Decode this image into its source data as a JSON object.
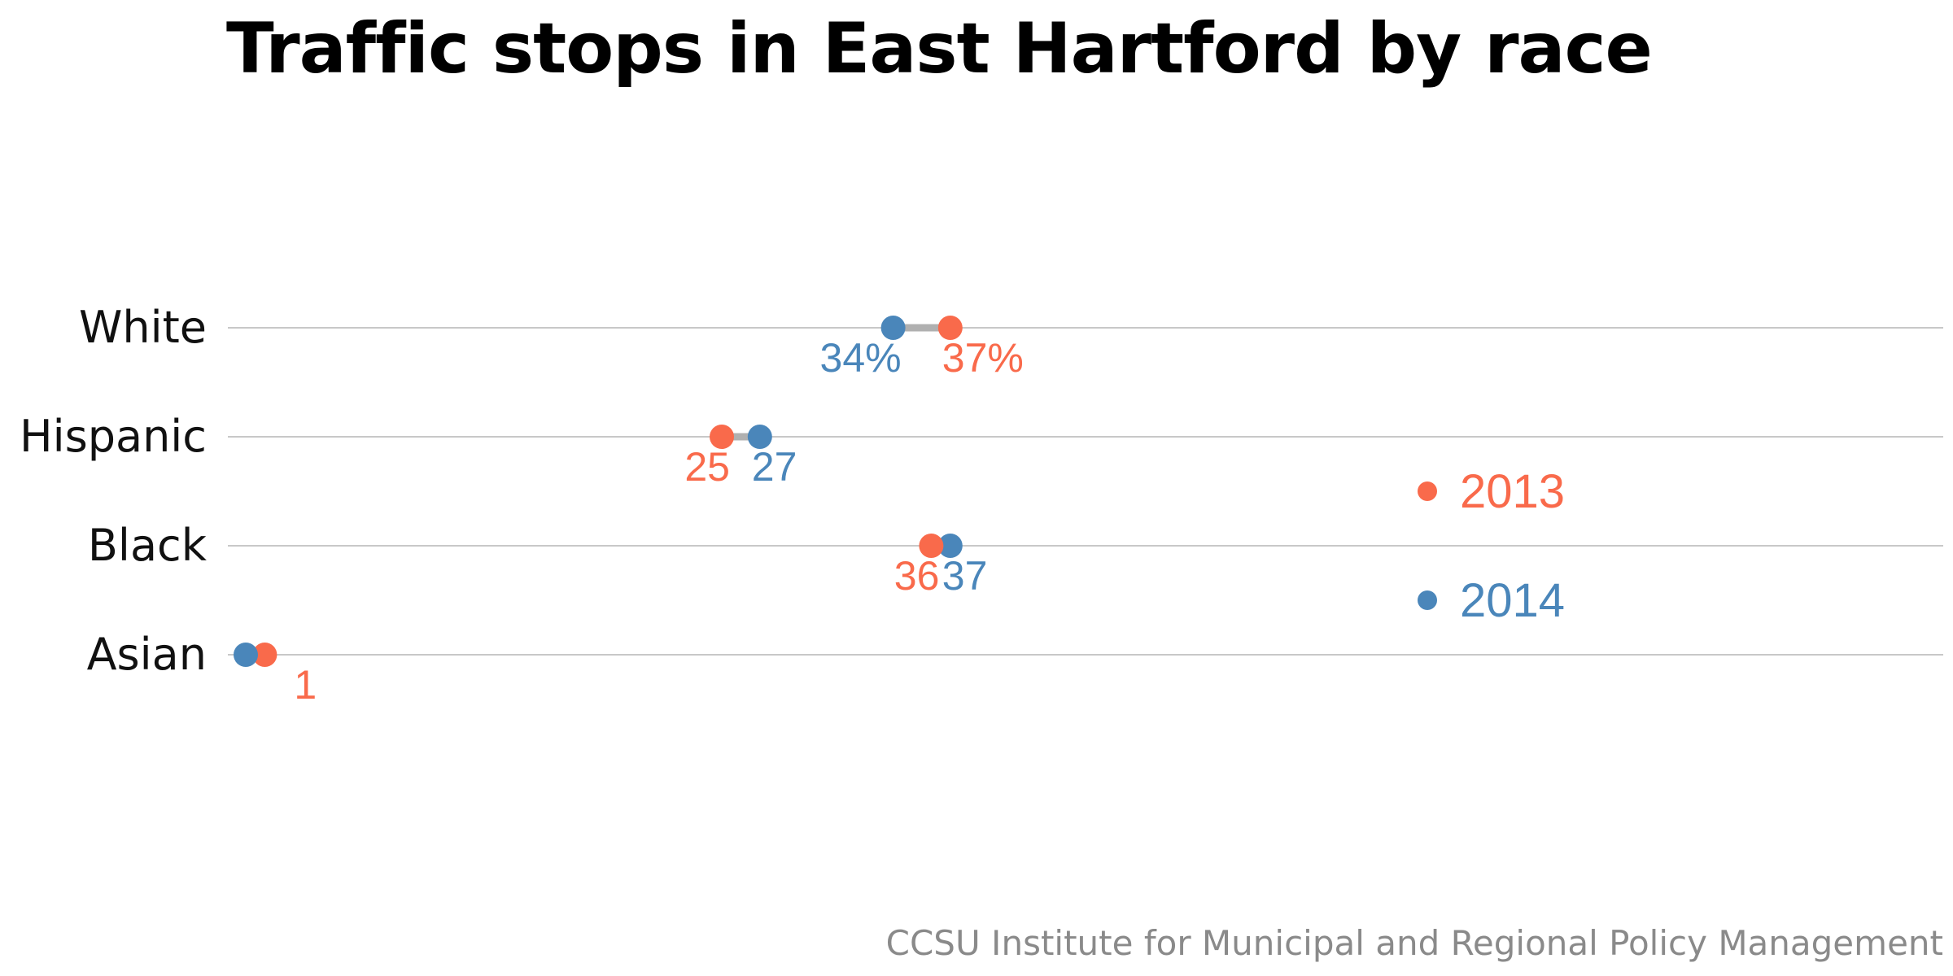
{
  "chart_data": {
    "type": "dot-plot",
    "title": "Traffic stops in East Hartford by race",
    "categories": [
      "White",
      "Hispanic",
      "Black",
      "Asian"
    ],
    "series": [
      {
        "name": "2013",
        "color": "#F96A4B",
        "values": [
          37,
          25,
          36,
          1
        ]
      },
      {
        "name": "2014",
        "color": "#4A86BA",
        "values": [
          34,
          27,
          37,
          0
        ]
      }
    ],
    "data_labels": [
      {
        "category": "White",
        "labels": [
          {
            "series": "2014",
            "text": "34%"
          },
          {
            "series": "2013",
            "text": "37%"
          }
        ]
      },
      {
        "category": "Hispanic",
        "labels": [
          {
            "series": "2013",
            "text": "25"
          },
          {
            "series": "2014",
            "text": "27"
          }
        ]
      },
      {
        "category": "Black",
        "labels": [
          {
            "series": "2013",
            "text": "36"
          },
          {
            "series": "2014",
            "text": "37"
          }
        ]
      },
      {
        "category": "Asian",
        "labels": [
          {
            "series": "2013",
            "text": "1"
          }
        ]
      }
    ],
    "xlim": [
      0,
      100
    ],
    "grid": true,
    "legend_position": "right",
    "connector_color": "#B0B0B0",
    "gridline_color": "#C8C8C8"
  },
  "source": "CCSU Institute for Municipal and Regional Policy Management"
}
